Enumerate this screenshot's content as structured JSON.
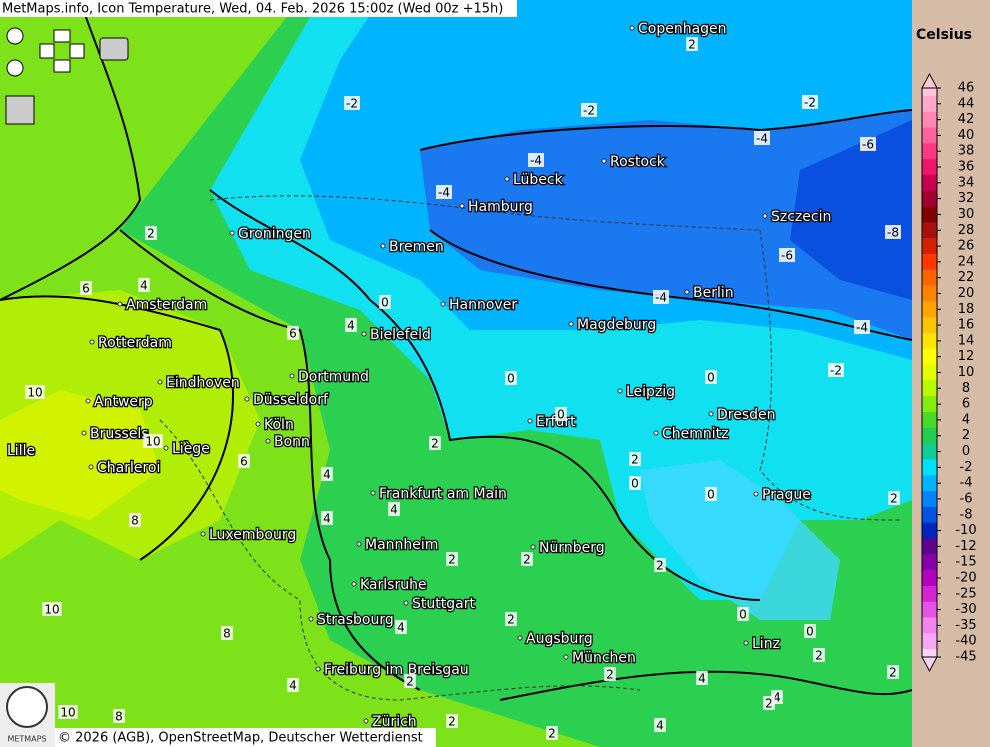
{
  "header": {
    "title": "MetMaps.info, Icon Temperature, Wed, 04. Feb. 2026 15:00z (Wed 00z +15h)"
  },
  "cities": [
    "Copenhagen",
    "Rostock",
    "Lübeck",
    "Hamburg",
    "Szczecin",
    "Groningen",
    "Bremen",
    "Berlin",
    "Amsterdam",
    "Hannover",
    "Magdeburg",
    "Bielefeld",
    "Rotterdam",
    "Eindhoven",
    "Dortmund",
    "Leipzig",
    "Antwerp",
    "Düsseldorf",
    "Dresden",
    "Erfurt",
    "Köln",
    "Brussels",
    "Chemnitz",
    "Bonn",
    "Liège",
    "Lille",
    "Charleroi",
    "Frankfurt am Main",
    "Prague",
    "Luxembourg",
    "Mannheim",
    "Nürnberg",
    "Karlsruhe",
    "Stuttgart",
    "Strasbourg",
    "Augsburg",
    "Linz",
    "München",
    "Freiburg im Breisgau",
    "Zürich"
  ],
  "contour_labels": [
    2,
    -2,
    -2,
    -2,
    -4,
    -6,
    -4,
    -4,
    -8,
    -6,
    -4,
    -4,
    -2,
    2,
    4,
    6,
    0,
    4,
    6,
    10,
    10,
    0,
    0,
    0,
    2,
    2,
    0,
    0,
    6,
    4,
    4,
    4,
    8,
    2,
    2,
    2,
    2,
    0,
    0,
    2,
    4,
    8,
    10,
    2,
    2,
    2,
    4,
    4,
    2,
    2,
    4,
    10,
    8,
    4,
    2,
    2
  ],
  "legend": {
    "unit": "Celsius",
    "items": [
      {
        "label": 46,
        "color": "#ffc8d8"
      },
      {
        "label": 44,
        "color": "#ffa8c8"
      },
      {
        "label": 42,
        "color": "#ff88b4"
      },
      {
        "label": 40,
        "color": "#ff64a0"
      },
      {
        "label": 38,
        "color": "#ff3884"
      },
      {
        "label": 36,
        "color": "#f0146c"
      },
      {
        "label": 34,
        "color": "#c80050"
      },
      {
        "label": 32,
        "color": "#a00030"
      },
      {
        "label": 30,
        "color": "#800000"
      },
      {
        "label": 28,
        "color": "#a81010"
      },
      {
        "label": 26,
        "color": "#d42000"
      },
      {
        "label": 24,
        "color": "#ff3800"
      },
      {
        "label": 22,
        "color": "#ff6400"
      },
      {
        "label": 20,
        "color": "#ff8400"
      },
      {
        "label": 18,
        "color": "#ffa400"
      },
      {
        "label": 16,
        "color": "#ffc400"
      },
      {
        "label": 14,
        "color": "#ffe400"
      },
      {
        "label": 12,
        "color": "#ffff00"
      },
      {
        "label": 10,
        "color": "#e0ff00"
      },
      {
        "label": 8,
        "color": "#b8f800"
      },
      {
        "label": 6,
        "color": "#84ec10"
      },
      {
        "label": 4,
        "color": "#48dc28"
      },
      {
        "label": 2,
        "color": "#20d050"
      },
      {
        "label": 0,
        "color": "#10cc98"
      },
      {
        "label": -2,
        "color": "#00e0ff"
      },
      {
        "label": -4,
        "color": "#00b4ff"
      },
      {
        "label": -6,
        "color": "#0084ff"
      },
      {
        "label": -8,
        "color": "#0054e4"
      },
      {
        "label": -10,
        "color": "#0024c0"
      },
      {
        "label": -12,
        "color": "#600090"
      },
      {
        "label": -15,
        "color": "#8400a8"
      },
      {
        "label": -20,
        "color": "#b400c4"
      },
      {
        "label": -25,
        "color": "#d424d4"
      },
      {
        "label": -30,
        "color": "#e454e4"
      },
      {
        "label": -35,
        "color": "#f084f0"
      },
      {
        "label": -40,
        "color": "#f4a8f4"
      },
      {
        "label": -45,
        "color": "#f8d4f8"
      }
    ]
  },
  "logo": "METMAPS",
  "footer": {
    "copyright": "© 2026 (AGB), OpenStreetMap, Deutscher Wetterdienst"
  }
}
